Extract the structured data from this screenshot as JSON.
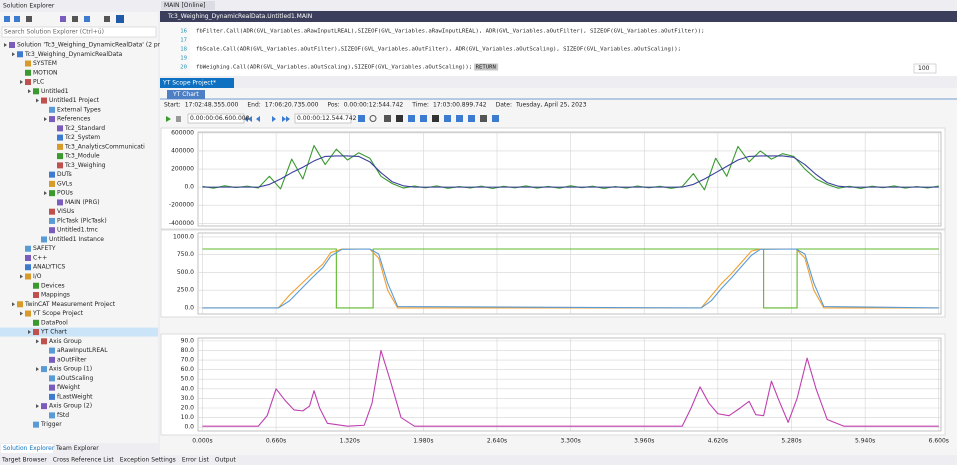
{
  "solution_explorer": {
    "title": "Solution Explorer",
    "search": "Search Solution Explorer (Ctrl+ü)",
    "tree": [
      {
        "label": "Solution 'Tc3_Weighing_DynamicRealData' (2 pr",
        "children": [
          {
            "label": "Tc3_Weighing_DynamicRealData",
            "children": [
              {
                "label": "SYSTEM"
              },
              {
                "label": "MOTION"
              },
              {
                "label": "PLC",
                "children": [
                  {
                    "label": "Untitled1",
                    "children": [
                      {
                        "label": "Untitled1 Project",
                        "children": [
                          {
                            "label": "External Types"
                          },
                          {
                            "label": "References",
                            "children": [
                              {
                                "label": "Tc2_Standard"
                              },
                              {
                                "label": "Tc2_System"
                              },
                              {
                                "label": "Tc3_AnalyticsCommunicati"
                              },
                              {
                                "label": "Tc3_Module"
                              },
                              {
                                "label": "Tc3_Weighing"
                              }
                            ]
                          },
                          {
                            "label": "DUTs"
                          },
                          {
                            "label": "GVLs"
                          },
                          {
                            "label": "POUs",
                            "children": [
                              {
                                "label": "MAIN (PRG)"
                              }
                            ]
                          },
                          {
                            "label": "VISUs"
                          },
                          {
                            "label": "PlcTask (PlcTask)"
                          },
                          {
                            "label": "Untitled1.tmc"
                          }
                        ]
                      },
                      {
                        "label": "Untitled1 Instance"
                      }
                    ]
                  }
                ]
              },
              {
                "label": "SAFETY"
              },
              {
                "label": "C++"
              },
              {
                "label": "ANALYTICS"
              },
              {
                "label": "I/O",
                "children": [
                  {
                    "label": "Devices"
                  },
                  {
                    "label": "Mappings"
                  }
                ]
              }
            ]
          },
          {
            "label": "TwinCAT Measurement Project",
            "children": [
              {
                "label": "YT Scope Project",
                "children": [
                  {
                    "label": "DataPool"
                  },
                  {
                    "label": "YT Chart",
                    "selected": true,
                    "children": [
                      {
                        "label": "Axis Group",
                        "children": [
                          {
                            "label": "aRawInputLREAL"
                          },
                          {
                            "label": "aOutFilter"
                          }
                        ]
                      },
                      {
                        "label": "Axis Group (1)",
                        "children": [
                          {
                            "label": "aOutScaling"
                          },
                          {
                            "label": "fWeight"
                          },
                          {
                            "label": "fLastWeight"
                          }
                        ]
                      },
                      {
                        "label": "Axis Group (2)",
                        "children": [
                          {
                            "label": "fStd"
                          }
                        ]
                      }
                    ]
                  },
                  {
                    "label": "Trigger"
                  }
                ]
              }
            ]
          }
        ]
      }
    ],
    "tabs": [
      "Solution Explorer",
      "Team Explorer"
    ]
  },
  "editor": {
    "tab": "MAIN [Online]",
    "path": "Tc3_Weighing_DynamicRealData.Untitled1.MAIN",
    "lines": [
      {
        "number": 16,
        "code": "fbFilter.Call(ADR(GVL_Variables.aRawInputLREAL),SIZEOF(GVL_Variables.aRawInputLREAL), ADR(GVL_Variables.aOutFilter), SIZEOF(GVL_Variables.aOutFilter));"
      },
      {
        "number": 17
      },
      {
        "number": 18,
        "code": "fbScale.Call(ADR(GVL_Variables.aOutFilter),SIZEOF(GVL_Variables.aOutFilter), ADR(GVL_Variables.aOutScaling), SIZEOF(GVL_Variables.aOutScaling));"
      },
      {
        "number": 19
      },
      {
        "number": 20,
        "code": "fbWeighing.Call(ADR(GVL_Variables.aOutScaling),SIZEOF(GVL_Variables.aOutScaling));",
        "marker": "RETURN"
      }
    ],
    "zoom": "100"
  },
  "scope": {
    "tab": "YT Scope Project*",
    "chart_tab": "YT Chart",
    "info": [
      {
        "label": "Start:",
        "value": "17:02:48.355.000"
      },
      {
        "label": "End:",
        "value": "17:06:20.735.000"
      },
      {
        "label": "Pos:",
        "value": "0.00:00:12:544.742"
      },
      {
        "label": "Time:",
        "value": "17:03:00.899.742"
      },
      {
        "label": "Date:",
        "value": "Tuesday, April 25, 2023"
      }
    ],
    "fields": [
      "0.00:00:06.600.000",
      "0.00:00:12.544.742"
    ]
  },
  "chart_data": [
    {
      "type": "line",
      "xlim": [
        -0.04,
        6.62
      ],
      "ylim": [
        -430000,
        610000
      ],
      "yticks": [
        600000,
        400000,
        200000,
        {
          "value": 0,
          "label": "0.0"
        },
        -200000,
        -400000
      ],
      "grid": true,
      "x": [
        0,
        0.1,
        0.2,
        0.3,
        0.4,
        0.5,
        0.6,
        0.7,
        0.8,
        0.9,
        1.0,
        1.1,
        1.2,
        1.3,
        1.4,
        1.5,
        1.6,
        1.7,
        1.8,
        1.9,
        2.0,
        2.1,
        2.2,
        2.3,
        2.4,
        2.5,
        2.6,
        2.7,
        2.8,
        2.9,
        3.0,
        3.1,
        3.2,
        3.3,
        3.4,
        3.5,
        3.6,
        3.7,
        3.8,
        3.9,
        4.0,
        4.1,
        4.2,
        4.3,
        4.4,
        4.5,
        4.6,
        4.7,
        4.8,
        4.9,
        5.0,
        5.1,
        5.2,
        5.3,
        5.4,
        5.5,
        5.6,
        5.7,
        5.8,
        5.9,
        6.0,
        6.1,
        6.2,
        6.3,
        6.4,
        6.5,
        6.6
      ],
      "series": [
        {
          "color": "#3a9a2f",
          "values": [
            8000,
            -12000,
            15000,
            -5000,
            11000,
            -9000,
            120000,
            -20000,
            310000,
            90000,
            460000,
            250000,
            420000,
            300000,
            380000,
            320000,
            120000,
            40000,
            -10000,
            12000,
            -8000,
            14000,
            -13000,
            6000,
            -9000,
            11000,
            -15000,
            9000,
            -7000,
            13000,
            -10000,
            8000,
            -12000,
            15000,
            -6000,
            10000,
            -14000,
            7000,
            -11000,
            12000,
            -8000,
            9000,
            -13000,
            6000,
            150000,
            -30000,
            320000,
            120000,
            450000,
            280000,
            400000,
            310000,
            370000,
            340000,
            200000,
            90000,
            30000,
            -12000,
            9000,
            -14000,
            10000,
            -6000,
            13000,
            -11000,
            7000,
            -9000,
            12000
          ]
        },
        {
          "color": "#3b3f9e",
          "values": [
            0,
            0,
            0,
            0,
            0,
            0,
            30000,
            90000,
            160000,
            220000,
            290000,
            340000,
            345000,
            345000,
            340000,
            280000,
            160000,
            60000,
            15000,
            0,
            0,
            0,
            0,
            0,
            0,
            0,
            0,
            0,
            0,
            0,
            0,
            0,
            0,
            0,
            0,
            0,
            0,
            0,
            0,
            0,
            0,
            0,
            0,
            0,
            30000,
            90000,
            160000,
            230000,
            300000,
            340000,
            345000,
            345000,
            345000,
            330000,
            250000,
            140000,
            50000,
            10000,
            0,
            0,
            0,
            0,
            0,
            0,
            0,
            0,
            0
          ]
        }
      ]
    },
    {
      "type": "line",
      "xlim": [
        -0.04,
        6.62
      ],
      "ylim": [
        -85,
        1055
      ],
      "yticks": [
        {
          "value": 1000,
          "label": "1000.0"
        },
        {
          "value": 750,
          "label": "750.0"
        },
        {
          "value": 500,
          "label": "500.0"
        },
        {
          "value": 250,
          "label": "250.0"
        },
        {
          "value": 0,
          "label": "0.0"
        }
      ],
      "grid": true,
      "series": [
        {
          "color": "#5cb82a",
          "x": [
            0,
            1.2,
            1.2,
            1.53,
            1.53,
            5.03,
            5.03,
            5.33,
            5.33,
            6.6
          ],
          "values": [
            830,
            830,
            0,
            0,
            830,
            830,
            0,
            0,
            830,
            830
          ]
        },
        {
          "color": "#f0a030",
          "x": [
            0,
            0.68,
            0.78,
            0.88,
            0.98,
            1.08,
            1.15,
            1.25,
            1.5,
            1.58,
            1.66,
            1.75,
            4.47,
            4.56,
            4.65,
            4.74,
            4.83,
            4.92,
            5.0,
            5.32,
            5.4,
            5.48,
            5.57,
            6.6
          ],
          "values": [
            0,
            0,
            180,
            330,
            480,
            620,
            780,
            830,
            830,
            700,
            250,
            0,
            0,
            170,
            340,
            480,
            640,
            800,
            830,
            830,
            700,
            250,
            0,
            0
          ]
        },
        {
          "color": "#5b9bd5",
          "x": [
            0,
            0.68,
            0.78,
            0.88,
            0.98,
            1.08,
            1.15,
            1.25,
            1.5,
            1.58,
            1.66,
            1.75,
            4.47,
            4.56,
            4.65,
            4.74,
            4.83,
            4.92,
            5.0,
            5.32,
            5.4,
            5.48,
            5.57,
            6.6
          ],
          "values": [
            0,
            0,
            100,
            260,
            420,
            570,
            730,
            825,
            830,
            760,
            350,
            20,
            0,
            100,
            270,
            420,
            580,
            740,
            825,
            830,
            760,
            350,
            20,
            0
          ]
        }
      ]
    },
    {
      "type": "line",
      "xlim": [
        -0.04,
        6.62
      ],
      "ylim": [
        -4,
        93
      ],
      "yticks": [
        {
          "value": 90,
          "label": "90.0"
        },
        {
          "value": 80,
          "label": "80.0"
        },
        {
          "value": 70,
          "label": "70.0"
        },
        {
          "value": 60,
          "label": "60.0"
        },
        {
          "value": 50,
          "label": "50.0"
        },
        {
          "value": 40,
          "label": "40.0"
        },
        {
          "value": 30,
          "label": "30.0"
        },
        {
          "value": 20,
          "label": "20.0"
        },
        {
          "value": 10,
          "label": "10.0"
        },
        {
          "value": 0,
          "label": "0.0"
        }
      ],
      "xticks": [
        {
          "value": 0,
          "label": "0.000s"
        },
        {
          "value": 0.66,
          "label": "0.660s"
        },
        {
          "value": 1.32,
          "label": "1.320s"
        },
        {
          "value": 1.98,
          "label": "1.980s"
        },
        {
          "value": 2.64,
          "label": "2.640s"
        },
        {
          "value": 3.3,
          "label": "3.300s"
        },
        {
          "value": 3.96,
          "label": "3.960s"
        },
        {
          "value": 4.62,
          "label": "4.620s"
        },
        {
          "value": 5.28,
          "label": "5.280s"
        },
        {
          "value": 5.94,
          "label": "5.940s"
        },
        {
          "value": 6.6,
          "label": "6.600s"
        }
      ],
      "grid": true,
      "series": [
        {
          "color": "#c03fb0",
          "x": [
            0,
            0.5,
            0.58,
            0.66,
            0.74,
            0.82,
            0.9,
            0.96,
            1.0,
            1.05,
            1.12,
            1.3,
            1.45,
            1.52,
            1.6,
            1.68,
            1.78,
            1.9,
            4.3,
            4.38,
            4.46,
            4.54,
            4.62,
            4.72,
            4.82,
            4.9,
            4.96,
            5.03,
            5.1,
            5.16,
            5.25,
            5.33,
            5.42,
            5.5,
            5.6,
            5.75,
            6.6
          ],
          "values": [
            1,
            1,
            12,
            40,
            28,
            18,
            17,
            22,
            38,
            20,
            4,
            1,
            2,
            25,
            80,
            50,
            10,
            1,
            1,
            20,
            42,
            25,
            14,
            12,
            20,
            27,
            13,
            12,
            48,
            30,
            5,
            30,
            72,
            40,
            8,
            1,
            1
          ]
        }
      ]
    }
  ],
  "status_bar": [
    "Target Browser",
    "Cross Reference List",
    "Exception Settings",
    "Error List",
    "Output"
  ]
}
